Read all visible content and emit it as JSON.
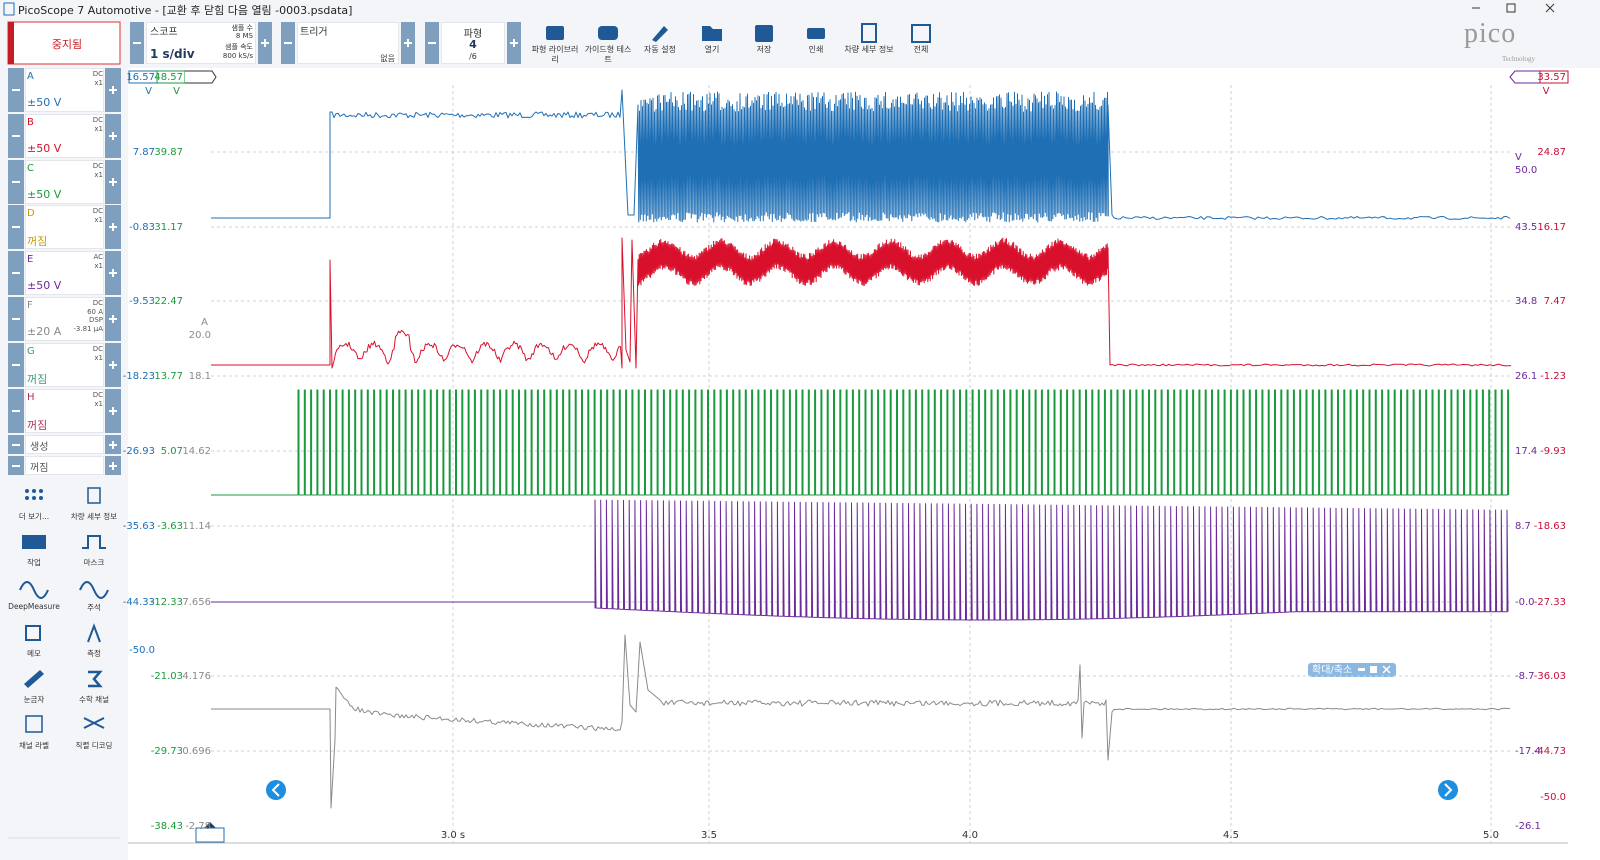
{
  "window": {
    "title": "PicoScope 7 Automotive - [교환 후 닫힘 다음 열림 -0003.psdata]"
  },
  "toolbar": {
    "run_state": "중지됨",
    "scope": {
      "label": "스코프",
      "timebase": "1 s/div",
      "samples_label": "샘플 수",
      "samples": "8 MS",
      "rate_label": "샘플 속도",
      "rate": "800 kS/s"
    },
    "trigger": {
      "label": "트리거",
      "mode": "없음"
    },
    "waveform": {
      "label": "파형",
      "current": "4",
      "total": "/6"
    },
    "buttons": [
      "파형 라이브러리",
      "가이드형 테스트",
      "자동 설정",
      "열기",
      "저장",
      "인쇄",
      "차량 세부 정보",
      "전체"
    ],
    "logo": "pico",
    "logo_sub": "Technology"
  },
  "channels": [
    {
      "name": "A",
      "details": [
        "DC",
        "x1"
      ],
      "range": "±50 V",
      "color": "#1f6fb5"
    },
    {
      "name": "B",
      "details": [
        "DC",
        "x1"
      ],
      "range": "±50 V",
      "color": "#d8102c"
    },
    {
      "name": "C",
      "details": [
        "DC",
        "x1"
      ],
      "range": "±50 V",
      "color": "#1a9a3c"
    },
    {
      "name": "D",
      "details": [
        "DC",
        "x1"
      ],
      "range": "꺼짐",
      "color": "#c89a00"
    },
    {
      "name": "E",
      "details": [
        "AC",
        "x1"
      ],
      "range": "±50 V",
      "color": "#6a2a9a"
    },
    {
      "name": "F",
      "details": [
        "DC",
        "60 A",
        "DSP",
        "-3.81 µA"
      ],
      "range": "±20 A",
      "color": "#8a8a8a"
    },
    {
      "name": "G",
      "details": [
        "DC",
        "x1"
      ],
      "range": "꺼짐",
      "color": "#3d9a79"
    },
    {
      "name": "H",
      "details": [
        "DC",
        "x1"
      ],
      "range": "꺼짐",
      "color": "#b0305a"
    }
  ],
  "generator": [
    "생성",
    "꺼짐"
  ],
  "tools": [
    "더 보기...",
    "차량 세부 정보",
    "작업",
    "마스크",
    "DeepMeasure",
    "주석",
    "메모",
    "측정",
    "눈금자",
    "수학 채널",
    "채널 라벨",
    "직렬 디코딩"
  ],
  "left_axis": [
    {
      "color": "#1f6fb5",
      "unit": "V",
      "labels": [
        "16.57",
        "7.87",
        "-0.83",
        "-9.53",
        "-18.23",
        "-26.93",
        "-35.63",
        "-44.33"
      ],
      "end": "-50.0"
    },
    {
      "color": "#1a9a3c",
      "unit": "V",
      "labels": [
        "48.57",
        "39.87",
        "31.17",
        "22.47",
        "13.77",
        "5.07",
        "-3.63",
        "-12.33",
        "-21.03",
        "-29.73",
        "-38.43"
      ]
    },
    {
      "color": "#8a8a8a",
      "unit": "A",
      "top": "20.0",
      "labels": [
        "18.1",
        "14.62",
        "11.14",
        "7.656",
        "4.176",
        "0.696",
        "-2.78"
      ]
    }
  ],
  "right_axis": [
    {
      "color": "#c8103a",
      "unit": "V",
      "labels": [
        "33.57",
        "24.87",
        "16.17",
        "7.47",
        "-1.23",
        "-9.93",
        "-18.63",
        "-27.33",
        "-36.03",
        "-44.73"
      ],
      "end": "-50.0"
    },
    {
      "color": "#6a2a9a",
      "unit": "V",
      "top": "50.0",
      "labels": [
        "43.5",
        "34.8",
        "26.1",
        "17.4",
        "8.7",
        "-0.0",
        "-8.7",
        "-17.4"
      ],
      "end": "-26.1"
    }
  ],
  "x_axis": [
    "3.0 s",
    "3.5",
    "4.0",
    "4.5",
    "5.0"
  ],
  "zoom": "확대/축소"
}
